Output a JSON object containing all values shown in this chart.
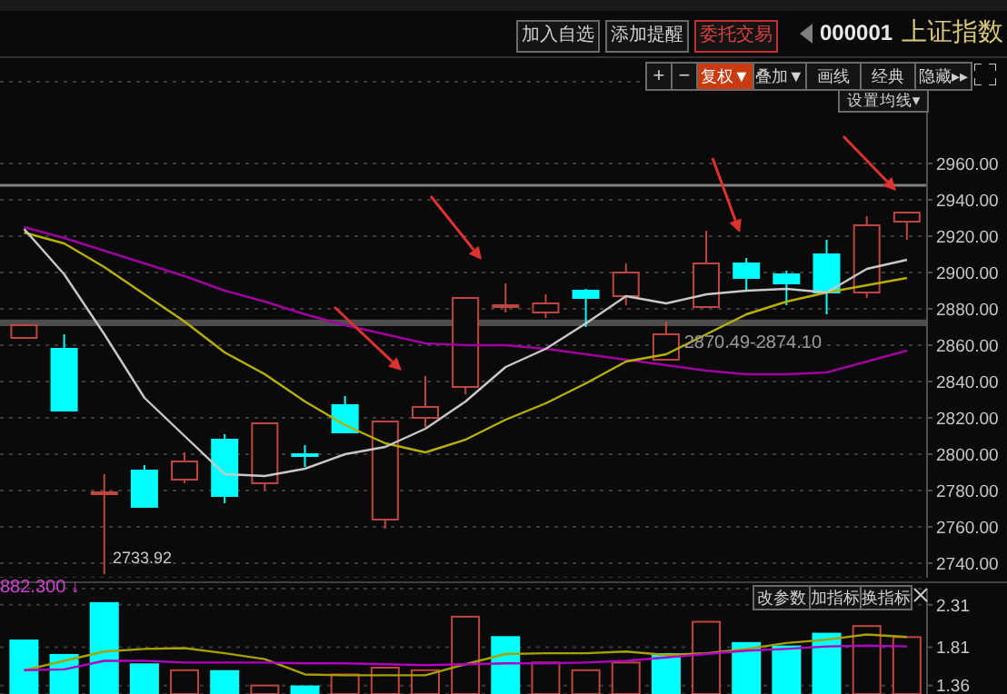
{
  "chart_data": [
    {
      "type": "candlestick",
      "title": "上证指数",
      "subtitle": "000001",
      "categories": [
        null,
        null,
        null,
        null,
        null,
        null,
        null,
        null,
        null,
        null,
        null,
        null,
        null,
        null,
        null,
        null,
        null,
        null,
        null,
        null,
        null,
        null,
        null
      ],
      "ohlc": [
        [
          2864,
          2871,
          2864,
          2871
        ],
        [
          2858,
          2866,
          2824,
          2824
        ],
        [
          2779,
          2789,
          2733.92,
          2779
        ],
        [
          2791,
          2794,
          2771,
          2771
        ],
        [
          2786,
          2801,
          2784,
          2796
        ],
        [
          2808,
          2811,
          2773,
          2777
        ],
        [
          2784,
          2817,
          2780,
          2817
        ],
        [
          2800,
          2805,
          2793,
          2800
        ],
        [
          2827,
          2832,
          2812,
          2812
        ],
        [
          2764,
          2818,
          2759,
          2818
        ],
        [
          2820,
          2843,
          2815,
          2826
        ],
        [
          2837,
          2886,
          2833,
          2886
        ],
        [
          2882,
          2894,
          2878,
          2882
        ],
        [
          2878,
          2888,
          2875,
          2883
        ],
        [
          2890,
          2891,
          2870,
          2886
        ],
        [
          2887,
          2905,
          2882,
          2900
        ],
        [
          2852,
          2873,
          2852,
          2866
        ],
        [
          2881,
          2923,
          2881,
          2905
        ],
        [
          2905,
          2908,
          2890,
          2897
        ],
        [
          2899,
          2901,
          2882,
          2894
        ],
        [
          2910,
          2918,
          2877,
          2889
        ],
        [
          2889,
          2931,
          2886,
          2926
        ],
        [
          2928,
          2933,
          2918,
          2933
        ]
      ],
      "colors": [
        "#c0453c",
        "#00ffff",
        "#c0453c",
        "#00ffff",
        "#c0453c",
        "#00ffff",
        "#c0453c",
        "#00ffff",
        "#00ffff",
        "#c0453c",
        "#c0453c",
        "#c0453c",
        "#c0453c",
        "#c0453c",
        "#00ffff",
        "#c0453c",
        "#c0453c",
        "#c0453c",
        "#00ffff",
        "#00ffff",
        "#00ffff",
        "#c0453c",
        "#c0453c"
      ],
      "series": [
        {
          "type": "line",
          "color": "#a000a0",
          "values": [
            2925,
            2919,
            2912,
            2905,
            2898,
            2890,
            2884,
            2877,
            2871,
            2866,
            2861,
            2860,
            2860,
            2858,
            2855,
            2852,
            2849,
            2846,
            2844,
            2844,
            2845,
            2851,
            2857
          ]
        },
        {
          "type": "line",
          "color": "#b8b000",
          "values": [
            2922,
            2916,
            2903,
            2888,
            2873,
            2856,
            2844,
            2829,
            2816,
            2806,
            2801,
            2808,
            2819,
            2828,
            2839,
            2851,
            2855,
            2866,
            2877,
            2884,
            2889,
            2893,
            2897
          ]
        },
        {
          "type": "line",
          "color": "#c8c8c8",
          "values": [
            2924,
            2899,
            2866,
            2831,
            2810,
            2789,
            2788,
            2792,
            2800,
            2804,
            2814,
            2829,
            2848,
            2858,
            2872,
            2887,
            2883,
            2888,
            2890,
            2891,
            2889,
            2902,
            2907
          ]
        }
      ],
      "ylim": [
        2732,
        3005
      ],
      "yticks": [
        {
          "value": 2740,
          "label": "2740.00"
        },
        {
          "value": 2760,
          "label": "2760.00"
        },
        {
          "value": 2780,
          "label": "2780.00"
        },
        {
          "value": 2800,
          "label": "2800.00"
        },
        {
          "value": 2820,
          "label": "2820.00"
        },
        {
          "value": 2840,
          "label": "2840.00"
        },
        {
          "value": 2860,
          "label": "2860.00"
        },
        {
          "value": 2880,
          "label": "2880.00"
        },
        {
          "value": 2900,
          "label": "2900.00"
        },
        {
          "value": 2920,
          "label": "2920.00"
        },
        {
          "value": 2940,
          "label": "2940.00"
        },
        {
          "value": 2960,
          "label": "2960.00"
        }
      ],
      "tick_labels": "y",
      "grid": "y",
      "ref_lines": [
        {
          "axis": "y",
          "value": 2948,
          "color": "#808080"
        }
      ],
      "bands": [
        {
          "axis": "y",
          "from": 2870.49,
          "to": 2874.1,
          "label": "2870.49-2874.10",
          "color": "#6a6a6a"
        }
      ],
      "annotations": [
        "加入自选",
        "添加提醒",
        "委托交易",
        "+",
        "−",
        "复权▼",
        "叠加▼",
        "画线",
        "经典",
        "隐藏▸▸",
        "设置均线▾",
        "2733.92"
      ]
    },
    {
      "type": "bar",
      "categories": [
        null,
        null,
        null,
        null,
        null,
        null,
        null,
        null,
        null,
        null,
        null,
        null,
        null,
        null,
        null,
        null,
        null,
        null,
        null,
        null,
        null,
        null,
        null
      ],
      "series": [
        {
          "type": "bar",
          "colors": [
            "#00ffff",
            "#00ffff",
            "#00ffff",
            "#00ffff",
            "#c0453c",
            "#00ffff",
            "#c0453c",
            "#00ffff",
            "#c0453c",
            "#c0453c",
            "#c0453c",
            "#c0453c",
            "#00ffff",
            "#c0453c",
            "#c0453c",
            "#c0453c",
            "#00ffff",
            "#c0453c",
            "#00ffff",
            "#00ffff",
            "#00ffff",
            "#c0453c",
            "#c0453c"
          ],
          "values": [
            1.89,
            1.72,
            2.33,
            1.61,
            1.54,
            1.53,
            1.36,
            1.35,
            1.49,
            1.57,
            1.54,
            2.17,
            1.93,
            1.63,
            1.54,
            1.63,
            1.73,
            2.11,
            1.86,
            1.82,
            1.97,
            2.06,
            1.93
          ]
        },
        {
          "type": "line",
          "color": "#a8a000",
          "values": [
            1.54,
            1.65,
            1.76,
            1.79,
            1.8,
            1.74,
            1.67,
            1.49,
            1.48,
            1.48,
            1.48,
            1.61,
            1.73,
            1.74,
            1.74,
            1.76,
            1.72,
            1.74,
            1.79,
            1.86,
            1.9,
            1.96,
            1.93
          ]
        },
        {
          "type": "line",
          "color": "#b000c0",
          "values": [
            1.54,
            1.55,
            1.65,
            1.65,
            1.63,
            1.63,
            1.63,
            1.62,
            1.62,
            1.61,
            1.6,
            1.61,
            1.62,
            1.62,
            1.63,
            1.65,
            1.69,
            1.73,
            1.77,
            1.79,
            1.82,
            1.83,
            1.82
          ]
        }
      ],
      "ylim": [
        1.26,
        2.5
      ],
      "yticks": [
        1.36,
        1.81,
        2.31
      ],
      "tick_labels": "y",
      "grid": "y",
      "annotations": [
        "882.300 ↓",
        "改参数",
        "加指标",
        "换指标"
      ]
    }
  ]
}
